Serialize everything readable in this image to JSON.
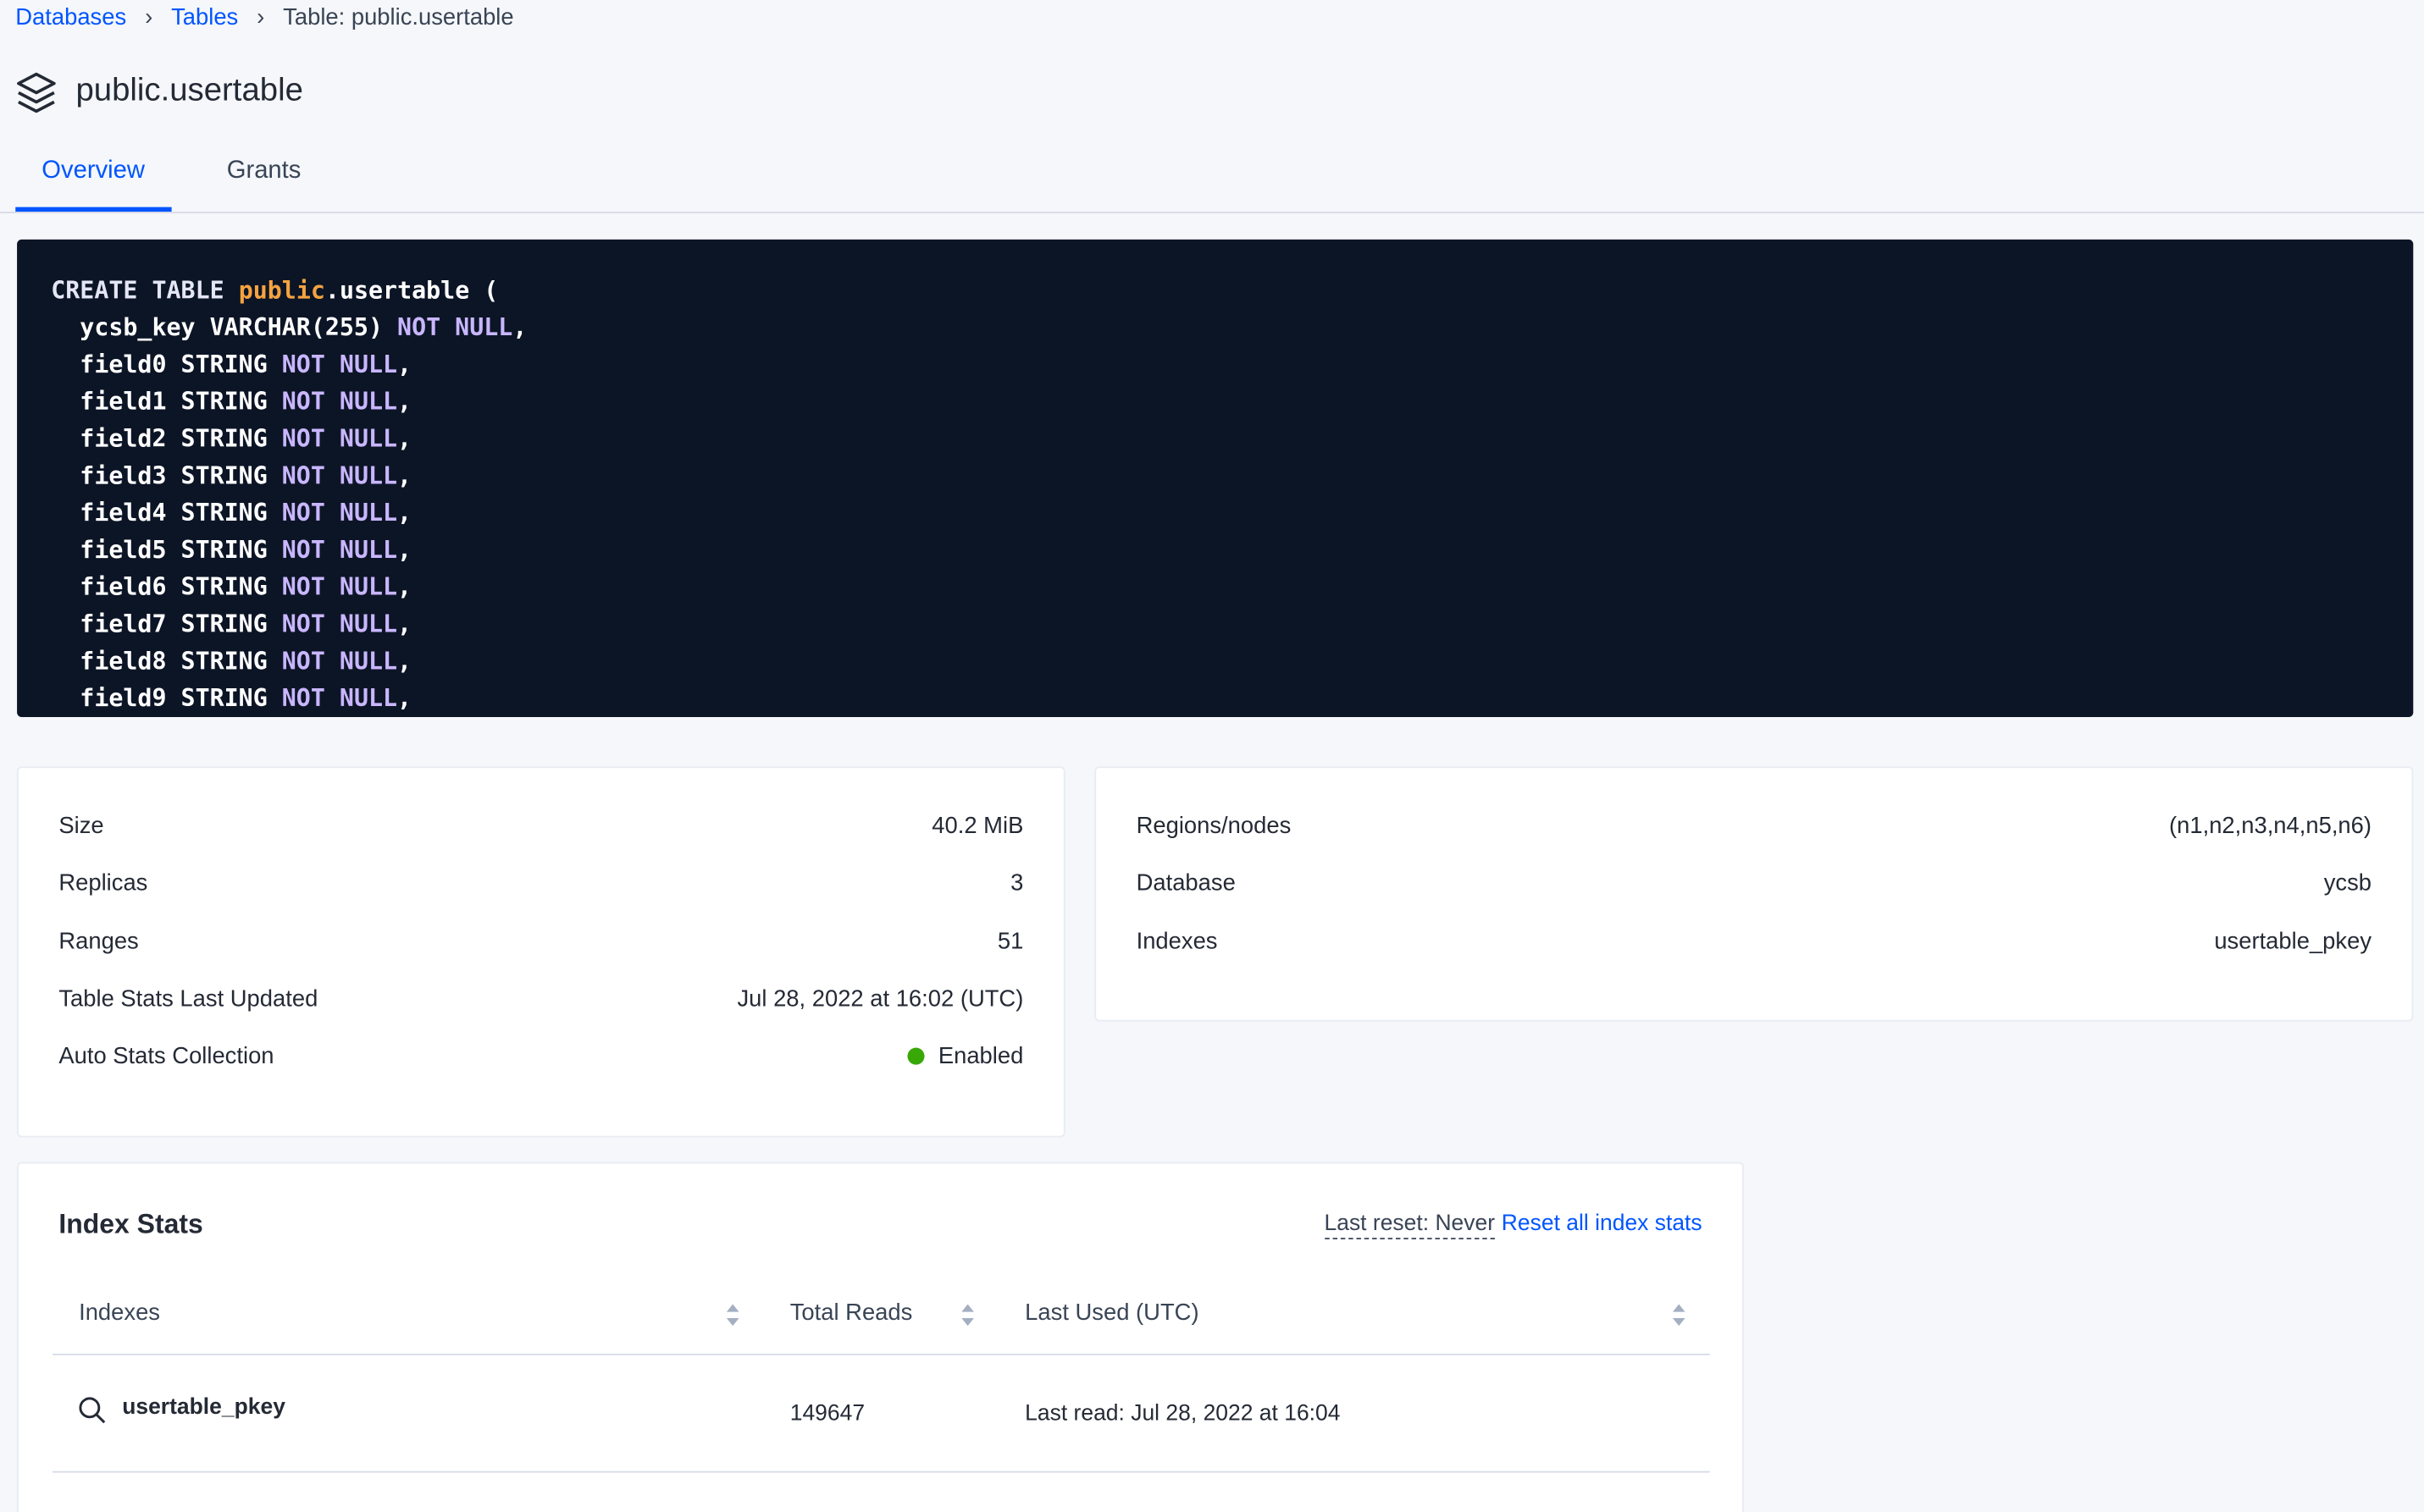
{
  "breadcrumb": [
    "Databases",
    "Tables",
    "Table: public.usertable"
  ],
  "title": "public.usertable",
  "tabs": [
    "Overview",
    "Grants"
  ],
  "code": {
    "lines": [
      [
        {
          "text": "CREATE TABLE ",
          "color": "#e4e6f5"
        },
        {
          "text": "public",
          "color": "#f5a340"
        },
        {
          "text": ".usertable (",
          "color": "#ffffff"
        }
      ],
      [
        {
          "text": "  ycsb_key VARCHAR(255) ",
          "color": "#ffffff"
        },
        {
          "text": "NOT NULL",
          "color": "#c9b6ff"
        },
        {
          "text": ",",
          "color": "#ffffff"
        }
      ],
      [
        {
          "text": "  field0 STRING ",
          "color": "#ffffff"
        },
        {
          "text": "NOT NULL",
          "color": "#c9b6ff"
        },
        {
          "text": ",",
          "color": "#ffffff"
        }
      ],
      [
        {
          "text": "  field1 STRING ",
          "color": "#ffffff"
        },
        {
          "text": "NOT NULL",
          "color": "#c9b6ff"
        },
        {
          "text": ",",
          "color": "#ffffff"
        }
      ],
      [
        {
          "text": "  field2 STRING ",
          "color": "#ffffff"
        },
        {
          "text": "NOT NULL",
          "color": "#c9b6ff"
        },
        {
          "text": ",",
          "color": "#ffffff"
        }
      ],
      [
        {
          "text": "  field3 STRING ",
          "color": "#ffffff"
        },
        {
          "text": "NOT NULL",
          "color": "#c9b6ff"
        },
        {
          "text": ",",
          "color": "#ffffff"
        }
      ],
      [
        {
          "text": "  field4 STRING ",
          "color": "#ffffff"
        },
        {
          "text": "NOT NULL",
          "color": "#c9b6ff"
        },
        {
          "text": ",",
          "color": "#ffffff"
        }
      ],
      [
        {
          "text": "  field5 STRING ",
          "color": "#ffffff"
        },
        {
          "text": "NOT NULL",
          "color": "#c9b6ff"
        },
        {
          "text": ",",
          "color": "#ffffff"
        }
      ],
      [
        {
          "text": "  field6 STRING ",
          "color": "#ffffff"
        },
        {
          "text": "NOT NULL",
          "color": "#c9b6ff"
        },
        {
          "text": ",",
          "color": "#ffffff"
        }
      ],
      [
        {
          "text": "  field7 STRING ",
          "color": "#ffffff"
        },
        {
          "text": "NOT NULL",
          "color": "#c9b6ff"
        },
        {
          "text": ",",
          "color": "#ffffff"
        }
      ],
      [
        {
          "text": "  field8 STRING ",
          "color": "#ffffff"
        },
        {
          "text": "NOT NULL",
          "color": "#c9b6ff"
        },
        {
          "text": ",",
          "color": "#ffffff"
        }
      ],
      [
        {
          "text": "  field9 STRING ",
          "color": "#ffffff"
        },
        {
          "text": "NOT NULL",
          "color": "#c9b6ff"
        },
        {
          "text": ",",
          "color": "#ffffff"
        }
      ]
    ]
  },
  "stats_left": [
    [
      "Size",
      "40.2 MiB"
    ],
    [
      "Replicas",
      "3"
    ],
    [
      "Ranges",
      "51"
    ],
    [
      "Table Stats Last Updated",
      "Jul 28, 2022 at 16:02 (UTC)"
    ],
    [
      "Auto Stats Collection",
      "Enabled"
    ]
  ],
  "stats_right": [
    [
      "Regions/nodes",
      "(n1,n2,n3,n4,n5,n6)"
    ],
    [
      "Database",
      "ycsb"
    ],
    [
      "Indexes",
      "usertable_pkey"
    ]
  ],
  "index_stats": {
    "title": "Index Stats",
    "last_reset": "Last reset: Never",
    "reset_link": "Reset all index stats",
    "columns": [
      "Indexes",
      "Total Reads",
      "Last Used (UTC)"
    ],
    "rows": [
      [
        "usertable_pkey",
        "149647",
        "Last read: Jul 28, 2022 at 16:04"
      ]
    ]
  }
}
